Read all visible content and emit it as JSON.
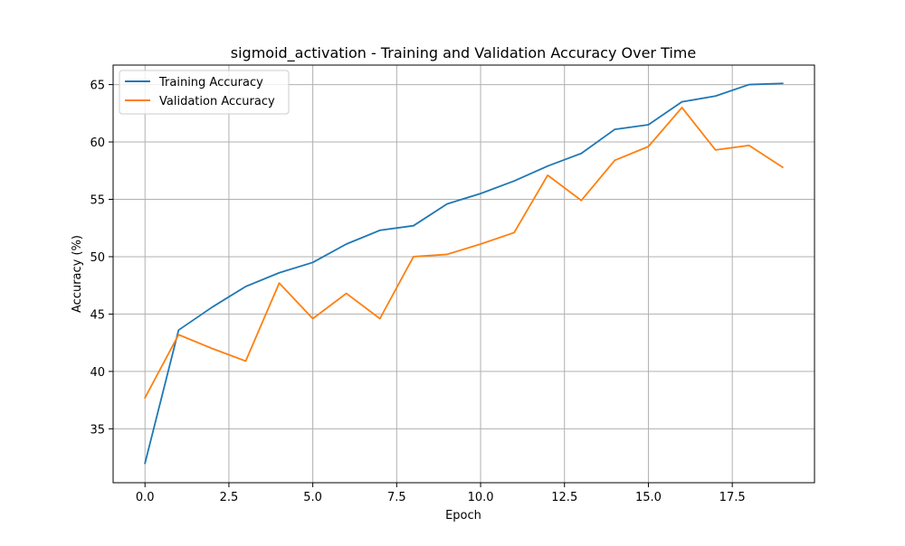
{
  "chart_data": {
    "type": "line",
    "title": "sigmoid_activation - Training and Validation Accuracy Over Time",
    "xlabel": "Epoch",
    "ylabel": "Accuracy (%)",
    "xlim": [
      -0.95,
      19.95
    ],
    "ylim": [
      30.3,
      66.7
    ],
    "xticks": [
      0.0,
      2.5,
      5.0,
      7.5,
      10.0,
      12.5,
      15.0,
      17.5
    ],
    "xtick_labels": [
      "0.0",
      "2.5",
      "5.0",
      "7.5",
      "10.0",
      "12.5",
      "15.0",
      "17.5"
    ],
    "yticks": [
      35,
      40,
      45,
      50,
      55,
      60,
      65
    ],
    "ytick_labels": [
      "35",
      "40",
      "45",
      "50",
      "55",
      "60",
      "65"
    ],
    "grid": true,
    "legend_position": "upper-left",
    "x": [
      0,
      1,
      2,
      3,
      4,
      5,
      6,
      7,
      8,
      9,
      10,
      11,
      12,
      13,
      14,
      15,
      16,
      17,
      18,
      19
    ],
    "series": [
      {
        "name": "Training Accuracy",
        "color": "#1f77b4",
        "values": [
          32.0,
          43.6,
          45.6,
          47.4,
          48.6,
          49.5,
          51.1,
          52.3,
          52.7,
          54.6,
          55.5,
          56.6,
          57.9,
          59.0,
          61.1,
          61.5,
          63.5,
          64.0,
          65.0,
          65.1
        ]
      },
      {
        "name": "Validation Accuracy",
        "color": "#ff7f0e",
        "values": [
          37.7,
          43.2,
          42.0,
          40.9,
          47.7,
          44.6,
          46.8,
          44.6,
          50.0,
          50.2,
          51.1,
          52.1,
          57.1,
          54.9,
          58.4,
          59.6,
          63.0,
          59.3,
          59.7,
          57.8
        ]
      }
    ]
  }
}
